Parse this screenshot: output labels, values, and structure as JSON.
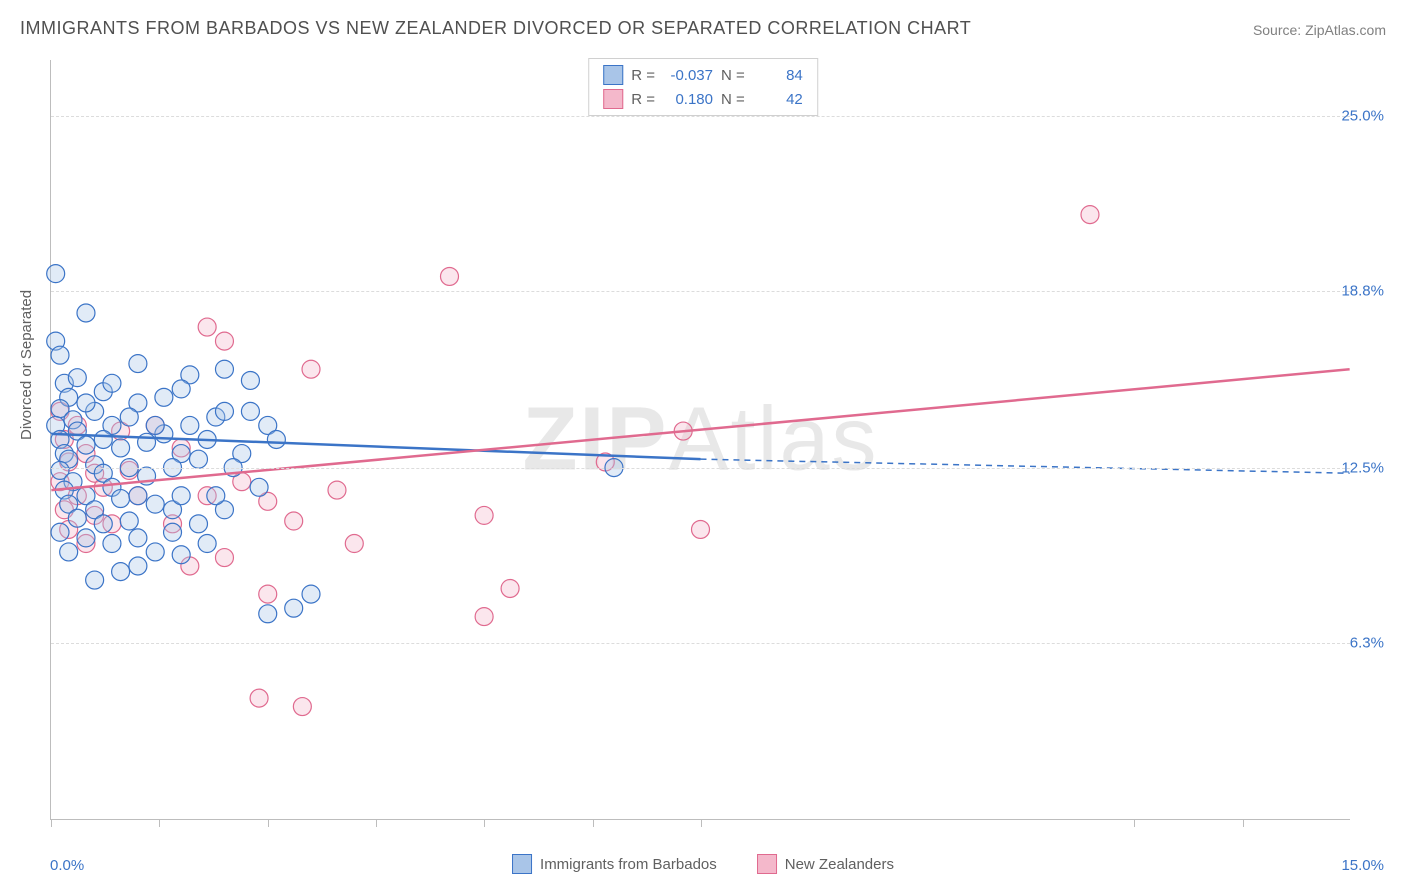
{
  "title": "IMMIGRANTS FROM BARBADOS VS NEW ZEALANDER DIVORCED OR SEPARATED CORRELATION CHART",
  "source": "Source: ZipAtlas.com",
  "watermark": {
    "bold": "ZIP",
    "rest": "Atlas"
  },
  "y_axis_label": "Divorced or Separated",
  "chart": {
    "type": "scatter",
    "xlim": [
      0,
      15
    ],
    "ylim": [
      0,
      27
    ],
    "x_ticks": [
      0,
      1.25,
      2.5,
      3.75,
      5,
      6.25,
      7.5,
      12.5,
      13.75
    ],
    "y_grid": [
      6.3,
      12.5,
      18.8,
      25.0
    ],
    "y_tick_labels": [
      "6.3%",
      "12.5%",
      "18.8%",
      "25.0%"
    ],
    "x_min_label": "0.0%",
    "x_max_label": "15.0%",
    "background_color": "#ffffff",
    "grid_color": "#dcdcdc",
    "axis_color": "#bdbdbd",
    "text_color": "#606060",
    "value_color": "#3b74c7",
    "title_fontsize": 18,
    "label_fontsize": 15,
    "marker_radius": 9,
    "marker_fill_opacity": 0.35,
    "marker_stroke_width": 1.2,
    "line_width": 2.5,
    "series": [
      {
        "name": "Immigrants from Barbados",
        "color_stroke": "#3b74c7",
        "color_fill": "#a9c5e8",
        "R": "-0.037",
        "N": "84",
        "trend": {
          "x1": 0,
          "y1": 13.7,
          "x2": 7.5,
          "y2": 12.8,
          "dash_x2": 15,
          "dash_y2": 12.3
        },
        "points": [
          [
            0.05,
            19.4
          ],
          [
            0.4,
            18.0
          ],
          [
            0.05,
            17.0
          ],
          [
            0.1,
            16.5
          ],
          [
            0.15,
            15.5
          ],
          [
            0.6,
            15.2
          ],
          [
            0.2,
            15.0
          ],
          [
            0.1,
            14.6
          ],
          [
            0.5,
            14.5
          ],
          [
            0.25,
            14.2
          ],
          [
            0.05,
            14.0
          ],
          [
            0.7,
            14.0
          ],
          [
            0.3,
            13.8
          ],
          [
            1.0,
            14.8
          ],
          [
            0.1,
            13.5
          ],
          [
            0.4,
            13.3
          ],
          [
            0.15,
            13.0
          ],
          [
            0.8,
            13.2
          ],
          [
            0.2,
            12.8
          ],
          [
            0.5,
            12.6
          ],
          [
            1.3,
            13.7
          ],
          [
            0.1,
            12.4
          ],
          [
            0.6,
            12.3
          ],
          [
            0.25,
            12.0
          ],
          [
            0.9,
            12.5
          ],
          [
            1.5,
            13.0
          ],
          [
            0.15,
            11.7
          ],
          [
            0.4,
            11.5
          ],
          [
            0.7,
            11.8
          ],
          [
            1.1,
            12.2
          ],
          [
            0.2,
            11.2
          ],
          [
            0.5,
            11.0
          ],
          [
            0.8,
            11.4
          ],
          [
            1.0,
            11.5
          ],
          [
            1.7,
            12.8
          ],
          [
            0.3,
            10.7
          ],
          [
            0.6,
            10.5
          ],
          [
            1.2,
            11.2
          ],
          [
            0.1,
            10.2
          ],
          [
            0.4,
            10.0
          ],
          [
            0.9,
            10.6
          ],
          [
            1.4,
            11.0
          ],
          [
            0.2,
            9.5
          ],
          [
            0.7,
            9.8
          ],
          [
            1.0,
            10.0
          ],
          [
            1.6,
            15.8
          ],
          [
            2.0,
            16.0
          ],
          [
            2.3,
            15.6
          ],
          [
            1.9,
            14.3
          ],
          [
            2.5,
            14.0
          ],
          [
            1.5,
            11.5
          ],
          [
            1.8,
            13.5
          ],
          [
            2.2,
            13.0
          ],
          [
            2.1,
            12.5
          ],
          [
            1.4,
            10.2
          ],
          [
            1.7,
            10.5
          ],
          [
            2.0,
            11.0
          ],
          [
            2.6,
            13.5
          ],
          [
            2.4,
            11.8
          ],
          [
            1.2,
            9.5
          ],
          [
            1.0,
            9.0
          ],
          [
            1.5,
            9.4
          ],
          [
            1.8,
            9.8
          ],
          [
            0.8,
            8.8
          ],
          [
            0.5,
            8.5
          ],
          [
            2.8,
            7.5
          ],
          [
            2.5,
            7.3
          ],
          [
            3.0,
            8.0
          ],
          [
            1.1,
            13.4
          ],
          [
            0.9,
            14.3
          ],
          [
            1.3,
            15.0
          ],
          [
            0.7,
            15.5
          ],
          [
            1.5,
            15.3
          ],
          [
            0.4,
            14.8
          ],
          [
            1.0,
            16.2
          ],
          [
            0.6,
            13.5
          ],
          [
            1.2,
            14.0
          ],
          [
            0.3,
            15.7
          ],
          [
            1.4,
            12.5
          ],
          [
            2.0,
            14.5
          ],
          [
            1.6,
            14.0
          ],
          [
            2.3,
            14.5
          ],
          [
            6.5,
            12.5
          ],
          [
            1.9,
            11.5
          ]
        ]
      },
      {
        "name": "New Zealanders",
        "color_stroke": "#e06a8f",
        "color_fill": "#f4b8cb",
        "R": "0.180",
        "N": "42",
        "trend": {
          "x1": 0,
          "y1": 11.7,
          "x2": 15,
          "y2": 16.0
        },
        "points": [
          [
            0.1,
            14.5
          ],
          [
            0.3,
            14.0
          ],
          [
            0.15,
            13.5
          ],
          [
            0.4,
            13.0
          ],
          [
            0.2,
            12.7
          ],
          [
            0.5,
            12.3
          ],
          [
            0.8,
            13.8
          ],
          [
            0.1,
            12.0
          ],
          [
            0.6,
            11.8
          ],
          [
            0.3,
            11.5
          ],
          [
            0.9,
            12.4
          ],
          [
            0.15,
            11.0
          ],
          [
            0.5,
            10.8
          ],
          [
            1.0,
            11.5
          ],
          [
            0.2,
            10.3
          ],
          [
            0.7,
            10.5
          ],
          [
            0.4,
            9.8
          ],
          [
            1.2,
            14.0
          ],
          [
            1.5,
            13.2
          ],
          [
            1.8,
            17.5
          ],
          [
            2.0,
            17.0
          ],
          [
            1.4,
            10.5
          ],
          [
            1.8,
            11.5
          ],
          [
            2.2,
            12.0
          ],
          [
            2.5,
            11.3
          ],
          [
            2.8,
            10.6
          ],
          [
            1.6,
            9.0
          ],
          [
            2.0,
            9.3
          ],
          [
            2.5,
            8.0
          ],
          [
            3.0,
            16.0
          ],
          [
            3.3,
            11.7
          ],
          [
            3.5,
            9.8
          ],
          [
            4.6,
            19.3
          ],
          [
            5.0,
            10.8
          ],
          [
            5.3,
            8.2
          ],
          [
            5.0,
            7.2
          ],
          [
            2.4,
            4.3
          ],
          [
            2.9,
            4.0
          ],
          [
            6.4,
            12.7
          ],
          [
            7.5,
            10.3
          ],
          [
            7.3,
            13.8
          ],
          [
            12.0,
            21.5
          ]
        ]
      }
    ],
    "legend_bottom": [
      {
        "label": "Immigrants from Barbados",
        "fill": "#a9c5e8",
        "stroke": "#3b74c7"
      },
      {
        "label": "New Zealanders",
        "fill": "#f4b8cb",
        "stroke": "#e06a8f"
      }
    ]
  }
}
